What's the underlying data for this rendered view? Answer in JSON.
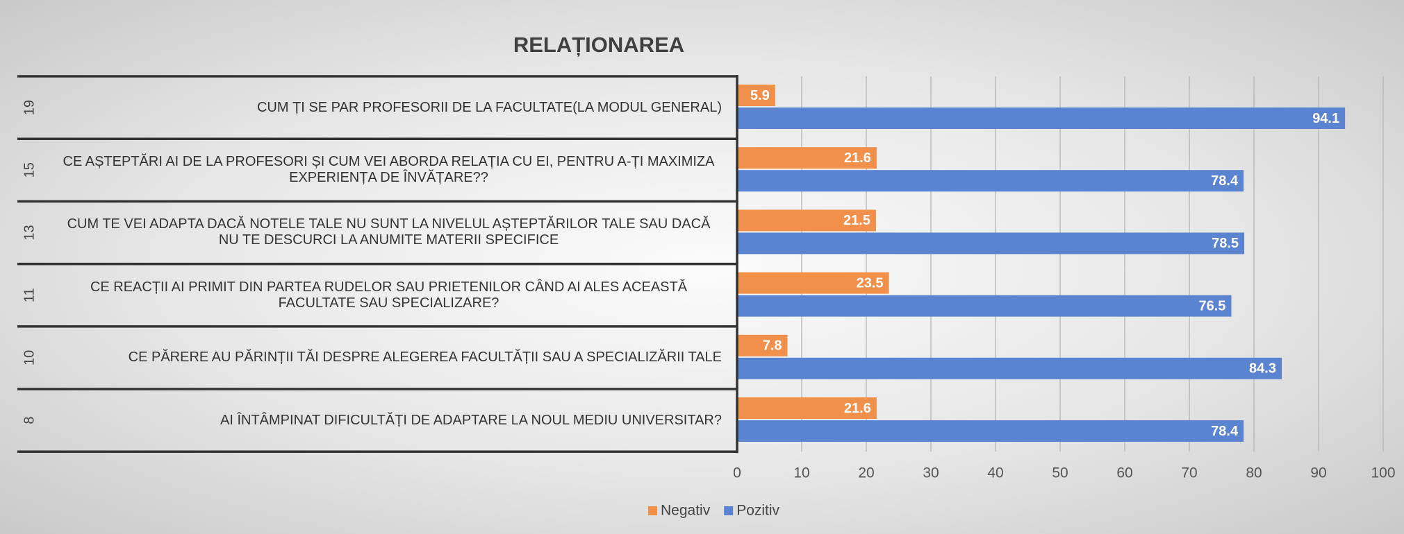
{
  "chart_data": {
    "type": "bar",
    "orientation": "horizontal",
    "title": "RELAȚIONAREA",
    "question_numbers": [
      "19",
      "15",
      "13",
      "11",
      "10",
      "8"
    ],
    "categories": [
      "CUM ȚI SE PAR PROFESORII DE LA FACULTATE(LA MODUL GENERAL)",
      "CE AȘTEPTĂRI AI DE LA PROFESORI ȘI CUM VEI ABORDA RELAȚIA CU EI,  PENTRU A-ȚI MAXIMIZA EXPERIENȚA DE ÎNVĂȚARE??",
      "CUM TE VEI ADAPTA DACĂ NOTELE TALE NU SUNT LA NIVELUL AȘTEPTĂRILOR TALE SAU DACĂ NU TE DESCURCI LA ANUMITE MATERII SPECIFICE",
      "CE REACȚII AI PRIMIT DIN PARTEA RUDELOR SAU PRIETENILOR CÂND AI ALES ACEASTĂ FACULTATE SAU SPECIALIZARE?",
      "CE PĂRERE AU PĂRINȚII TĂI DESPRE ALEGEREA FACULTĂȚII SAU A SPECIALIZĂRII TALE",
      "AI ÎNTÂMPINAT DIFICULTĂȚI DE ADAPTARE LA NOUL MEDIU UNIVERSITAR?"
    ],
    "series": [
      {
        "name": "Negativ",
        "color": "#f0904a",
        "values": [
          5.9,
          21.6,
          21.5,
          23.5,
          7.8,
          21.6
        ]
      },
      {
        "name": "Pozitiv",
        "color": "#5b84d0",
        "values": [
          94.1,
          78.4,
          78.5,
          76.5,
          84.3,
          78.4
        ]
      }
    ],
    "xlim": [
      0,
      100
    ],
    "xticks": [
      0,
      10,
      20,
      30,
      40,
      50,
      60,
      70,
      80,
      90,
      100
    ],
    "grid": true,
    "legend": "bottom"
  }
}
